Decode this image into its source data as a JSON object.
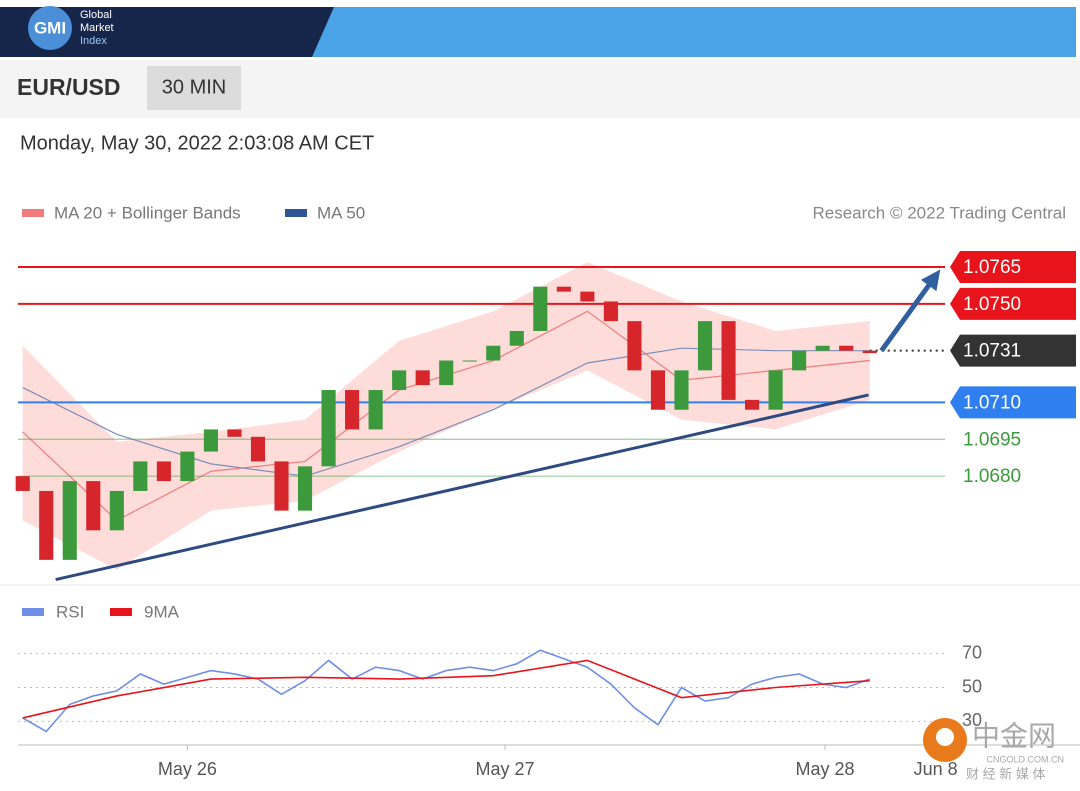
{
  "header": {
    "logo": "GMI",
    "brand": [
      "Global",
      "Market",
      "Index"
    ]
  },
  "symbol": "EUR/USD",
  "interval": "30 MIN",
  "timestamp": "Monday, May 30, 2022 2:03:08 AM CET",
  "watermark": {
    "name": "中金网",
    "site": "CNGOLD.COM.CN",
    "tagline": "财 经 新 媒 体"
  },
  "chart_data": [
    {
      "type": "candlestick",
      "source": "Research © 2022 Trading Central",
      "xlim": [
        -0.2,
        39.2
      ],
      "ylim": [
        1.0637,
        1.0778
      ],
      "candles": {
        "up_color": "#3c9a3c",
        "down_color": "#d6262b",
        "x": [
          0,
          1,
          2,
          3,
          4,
          5,
          6,
          7,
          8,
          9,
          10,
          11,
          12,
          13,
          14,
          15,
          16,
          17,
          18,
          19,
          20,
          21,
          22,
          23,
          24,
          25,
          26,
          27,
          28,
          29,
          30,
          31,
          32,
          33,
          34,
          35,
          36
        ],
        "open": [
          1.068,
          1.0674,
          1.0646,
          1.0678,
          1.0658,
          1.0674,
          1.0686,
          1.0678,
          1.069,
          1.0699,
          1.0696,
          1.0686,
          1.0666,
          1.0684,
          1.0715,
          1.0699,
          1.0715,
          1.0723,
          1.0717,
          1.0727,
          1.0727,
          1.0733,
          1.0739,
          1.0757,
          1.0755,
          1.0751,
          1.0743,
          1.0723,
          1.0707,
          1.0723,
          1.0743,
          1.0711,
          1.0707,
          1.0723,
          1.0731,
          1.0733,
          1.0731
        ],
        "close": [
          1.0674,
          1.0646,
          1.0678,
          1.0658,
          1.0674,
          1.0686,
          1.0678,
          1.069,
          1.0699,
          1.0696,
          1.0686,
          1.0666,
          1.0684,
          1.0715,
          1.0699,
          1.0715,
          1.0723,
          1.0717,
          1.0727,
          1.0727,
          1.0733,
          1.0739,
          1.0757,
          1.0755,
          1.0751,
          1.0743,
          1.0723,
          1.0707,
          1.0723,
          1.0743,
          1.0711,
          1.0707,
          1.0723,
          1.0731,
          1.0733,
          1.0731,
          1.073
        ]
      },
      "series": [
        {
          "name": "MA 20 + Bollinger Bands",
          "color": "#f07c7c",
          "band_color": "#fddcda",
          "x": [
            0,
            4,
            8,
            12,
            16,
            20,
            24,
            28,
            32,
            36
          ],
          "values": [
            1.0698,
            1.0662,
            1.0682,
            1.0686,
            1.0715,
            1.0727,
            1.0747,
            1.0719,
            1.0723,
            1.0727
          ],
          "upper": [
            1.0733,
            1.0694,
            1.0698,
            1.0703,
            1.0735,
            1.0747,
            1.0767,
            1.0751,
            1.0739,
            1.0743
          ],
          "lower": [
            1.0662,
            1.0642,
            1.0666,
            1.067,
            1.069,
            1.0707,
            1.0723,
            1.0703,
            1.0699,
            1.0711
          ]
        },
        {
          "name": "MA 50",
          "color": "#2f5597",
          "line_color": "#7d8fb8",
          "x": [
            0,
            4,
            8,
            12,
            16,
            20,
            24,
            28,
            32,
            36
          ],
          "values": [
            1.0716,
            1.0697,
            1.0685,
            1.068,
            1.0692,
            1.0707,
            1.0726,
            1.0732,
            1.0731,
            1.0731
          ]
        }
      ],
      "levels": [
        {
          "value": 1.0765,
          "color": "#e8141c",
          "boxed": true,
          "line": "solid"
        },
        {
          "value": 1.075,
          "label": "1.0750",
          "color": "#e8141c",
          "boxed": true,
          "line": "solid"
        },
        {
          "value": 1.0731,
          "color": "#333333",
          "boxed": true,
          "line": "dotted"
        },
        {
          "value": 1.071,
          "label": "1.0710",
          "color": "#2f7ff0",
          "boxed": true,
          "line": "solid"
        },
        {
          "value": 1.0695,
          "color": "#3c9a3c",
          "boxed": false,
          "line": "solid"
        },
        {
          "value": 1.068,
          "label": "1.0680",
          "color": "#3c9a3c",
          "boxed": false,
          "line": "solid"
        }
      ],
      "trendline": {
        "color": "#2f4a80",
        "x": [
          1.4,
          35.95
        ],
        "values": [
          1.0638,
          1.0713
        ]
      },
      "arrow": {
        "color": "#2f5f9f",
        "x": [
          36.5,
          39.0
        ],
        "values": [
          1.0731,
          1.0764
        ]
      }
    },
    {
      "type": "line",
      "xlim": [
        -0.2,
        39.2
      ],
      "ylim": [
        16,
        84
      ],
      "yticks": [
        30,
        50,
        70
      ],
      "grid": true,
      "xticks": [
        {
          "value": 7.0,
          "label": "May 26"
        },
        {
          "value": 20.5,
          "label": "May 27"
        },
        {
          "value": 34.1,
          "label": "May 28"
        },
        {
          "value": 38.8,
          "label": "Jun 8"
        }
      ],
      "series": [
        {
          "name": "RSI",
          "color": "#6f8fe6",
          "x": [
            0,
            1,
            2,
            3,
            4,
            5,
            6,
            7,
            8,
            9,
            10,
            11,
            12,
            13,
            14,
            15,
            16,
            17,
            18,
            19,
            20,
            21,
            22,
            23,
            24,
            25,
            26,
            27,
            28,
            29,
            30,
            31,
            32,
            33,
            34,
            35,
            36
          ],
          "values": [
            32,
            24,
            40,
            45,
            48,
            58,
            52,
            56,
            60,
            58,
            55,
            46,
            54,
            66,
            55,
            62,
            60,
            55,
            60,
            62,
            60,
            64,
            72,
            67,
            62,
            52,
            38,
            28,
            50,
            42,
            44,
            52,
            56,
            58,
            52,
            50,
            55
          ]
        },
        {
          "name": "9MA",
          "color": "#e8141c",
          "x": [
            0,
            4,
            8,
            12,
            16,
            20,
            24,
            28,
            32,
            36
          ],
          "values": [
            32,
            45,
            55,
            56,
            55,
            57,
            66,
            44,
            50,
            54
          ]
        }
      ]
    }
  ]
}
